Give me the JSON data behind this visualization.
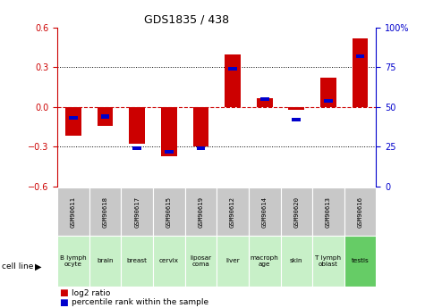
{
  "title": "GDS1835/ 438",
  "samples": [
    "GSM90611",
    "GSM90618",
    "GSM90617",
    "GSM90615",
    "GSM90619",
    "GSM90612",
    "GSM90614",
    "GSM90620",
    "GSM90613",
    "GSM90616"
  ],
  "cell_lines": [
    "B lymph\nocyte",
    "brain",
    "breast",
    "cervix",
    "liposar\ncoma",
    "liver",
    "macroph\nage",
    "skin",
    "T lymph\noblast",
    "testis"
  ],
  "log2_ratio": [
    -0.22,
    -0.14,
    -0.28,
    -0.37,
    -0.3,
    0.4,
    0.07,
    -0.02,
    0.22,
    0.52
  ],
  "percentile_rank": [
    43,
    44,
    24,
    22,
    24,
    74,
    55,
    42,
    54,
    82
  ],
  "ylim": [
    -0.6,
    0.6
  ],
  "yticks_left": [
    -0.6,
    -0.3,
    0.0,
    0.3,
    0.6
  ],
  "yticks_right": [
    0,
    25,
    50,
    75,
    100
  ],
  "bar_color": "#cc0000",
  "dot_color": "#0000cc",
  "hline_color": "#cc0000",
  "bar_width": 0.5,
  "gsm_bg": "#c8c8c8",
  "cell_colors_light": "#c8f0c8",
  "cell_color_dark": "#66cc66"
}
